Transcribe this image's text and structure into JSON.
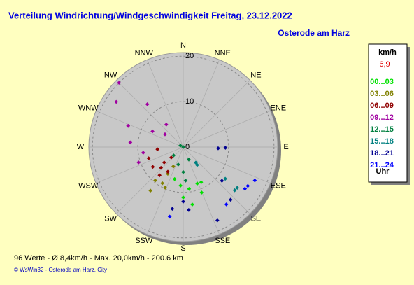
{
  "chart_data": {
    "type": "polar-scatter",
    "title": "Verteilung Windrichtung/Windgeschwindigkeit  Freitag, 23.12.2022",
    "subtitle": "Osterode am Harz",
    "directions": [
      "N",
      "NNE",
      "NE",
      "ENE",
      "E",
      "ESE",
      "SE",
      "SSE",
      "S",
      "SSW",
      "SW",
      "WSW",
      "W",
      "WNW",
      "NW",
      "NNW"
    ],
    "rlim": [
      0,
      20.8
    ],
    "rticks": [
      0,
      10,
      20
    ],
    "legend_title": "km/h",
    "legend_current": "6,9",
    "legend_unit": "Uhr",
    "series": [
      {
        "name": "00...03",
        "color": "#00e000",
        "direction": [
          184,
          172,
          159,
          158,
          180,
          171,
          195,
          153
        ],
        "values": [
          8.5,
          9.3,
          8.6,
          10.8,
          11.1,
          12.8,
          7.3,
          8.7
        ]
      },
      {
        "name": "03...06",
        "color": "#808000",
        "direction": [
          210,
          210,
          220,
          207,
          217,
          204
        ],
        "values": [
          9.2,
          6.8,
          9.6,
          4.8,
          12,
          9.8
        ]
      },
      {
        "name": "06...09",
        "color": "#900000",
        "direction": [
          265,
          227,
          237,
          212,
          252,
          229,
          231,
          220
        ],
        "values": [
          5.7,
          6.7,
          8,
          6.4,
          8,
          3.5,
          5.4,
          8.1
        ]
      },
      {
        "name": "09...12",
        "color": "#a000a0",
        "direction": [
          315,
          304,
          291,
          320,
          291,
          275,
          297,
          305,
          251,
          262,
          323
        ],
        "values": [
          20,
          17.8,
          13,
          12.3,
          13,
          11.7,
          7.6,
          4.9,
          10.4,
          8.9,
          6.2
        ]
      },
      {
        "name": "12...15",
        "color": "#008040",
        "direction": [
          0,
          297,
          156,
          196,
          180,
          229,
          176
        ],
        "values": [
          0,
          0.7,
          3,
          4,
          5.5,
          2.8,
          7.4
        ]
      },
      {
        "name": "15...18",
        "color": "#008080",
        "direction": [
          142,
          141,
          127,
          130,
          127
        ],
        "values": [
          5,
          4.4,
          11.6,
          14.8,
          14.9
        ]
      },
      {
        "name": "18...21",
        "color": "#000090",
        "direction": [
          92,
          91,
          131,
          138,
          180,
          190,
          175,
          155
        ],
        "values": [
          7.7,
          9.3,
          11.3,
          15.6,
          12,
          13.8,
          13.9,
          17.8
        ]
      },
      {
        "name": "21...24",
        "color": "#0000ff",
        "direction": [
          121,
          115,
          124,
          143,
          191
        ],
        "values": [
          16.6,
          17.4,
          16.4,
          15.8,
          15.6
        ]
      }
    ],
    "footer": "96 Werte  -  Ø 8,4km/h  -  Max. 20,0km/h  -  200.6 km",
    "copyright": "© WsWin32  -  Osterode am Harz, City"
  }
}
